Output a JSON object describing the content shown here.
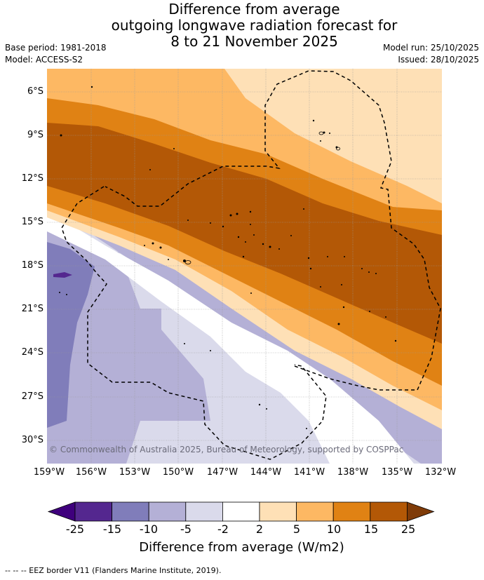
{
  "title": {
    "line1": "Difference from average",
    "line2": "outgoing longwave radiation forecast for",
    "line3": "8 to 21 November 2025"
  },
  "meta": {
    "base_period": "Base period: 1981-2018",
    "model": "Model: ACCESS-S2",
    "model_run": "Model run: 25/10/2025",
    "issued": "Issued: 28/10/2025"
  },
  "map": {
    "lat_labels": [
      "6°S",
      "9°S",
      "12°S",
      "15°S",
      "18°S",
      "21°S",
      "24°S",
      "27°S",
      "30°S"
    ],
    "lon_labels": [
      "159°W",
      "156°W",
      "153°W",
      "150°W",
      "147°W",
      "144°W",
      "141°W",
      "138°W",
      "135°W",
      "132°W"
    ],
    "copyright": "© Commonwealth of Australia 2025, Bureau of Meteorology, supported by COSPPac"
  },
  "colorbar": {
    "labels": [
      "-25",
      "-15",
      "-10",
      "-5",
      "-2",
      "2",
      "5",
      "10",
      "15",
      "25"
    ],
    "colors": [
      "#3f007d",
      "#54278f",
      "#807dba",
      "#b4b0d6",
      "#dadaeb",
      "#ffffff",
      "#fee0b6",
      "#fdb863",
      "#e08214",
      "#b35806",
      "#7f3b08"
    ],
    "title": "Difference from average (W/m2)"
  },
  "footnote": "--  --  -- EEZ border V11 (Flanders Marine Institute, 2019)."
}
